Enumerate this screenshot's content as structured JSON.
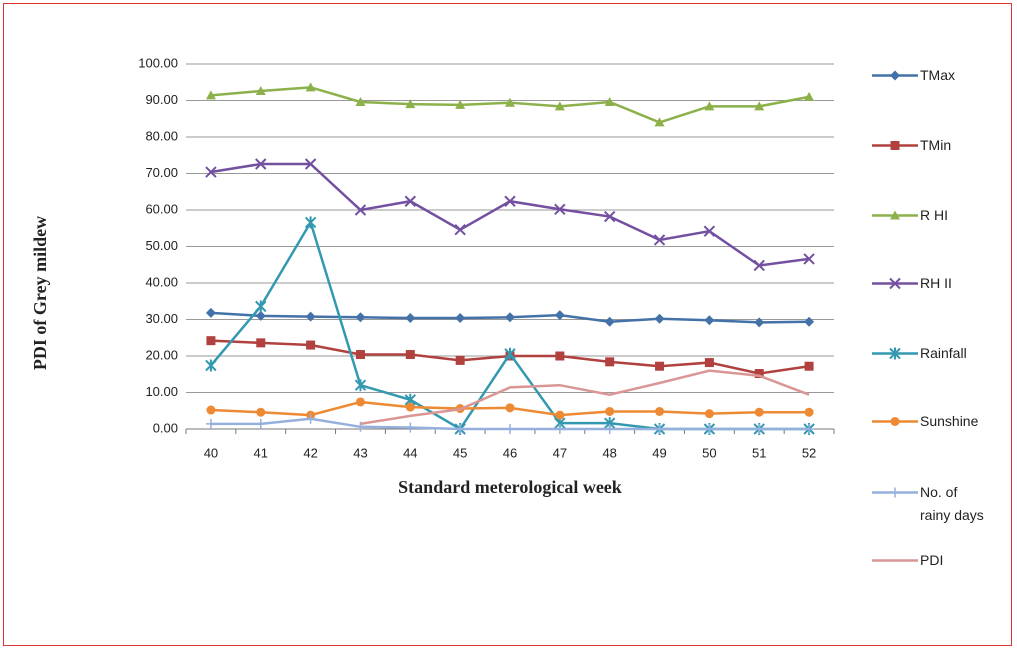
{
  "chart_data": {
    "type": "line",
    "y_label": "PDI of Grey mildew",
    "x_label": "Standard meterological week",
    "categories": [
      "40",
      "41",
      "42",
      "43",
      "44",
      "45",
      "46",
      "47",
      "48",
      "49",
      "50",
      "51",
      "52"
    ],
    "ylim": [
      0,
      100
    ],
    "yticks": [
      {
        "value": 0,
        "label": "0.00"
      },
      {
        "value": 10,
        "label": "10.00"
      },
      {
        "value": 20,
        "label": "20.00"
      },
      {
        "value": 30,
        "label": "30.00"
      },
      {
        "value": 40,
        "label": "40.00"
      },
      {
        "value": 50,
        "label": "50.00"
      },
      {
        "value": 60,
        "label": "60.00"
      },
      {
        "value": 70,
        "label": "70.00"
      },
      {
        "value": 80,
        "label": "80.00"
      },
      {
        "value": 90,
        "label": "90.00"
      },
      {
        "value": 100,
        "label": "100.00"
      }
    ],
    "grid": true,
    "legend": "right",
    "series": [
      {
        "name": "TMax",
        "color": "#4472a8",
        "marker": "diamond",
        "values": [
          31.8,
          31.0,
          30.8,
          30.6,
          30.4,
          30.4,
          30.6,
          31.2,
          29.4,
          30.2,
          29.8,
          29.2,
          29.4
        ]
      },
      {
        "name": "TMin",
        "color": "#b0413e",
        "marker": "square",
        "values": [
          24.2,
          23.6,
          23.0,
          20.4,
          20.4,
          18.8,
          20.0,
          20.0,
          18.4,
          17.2,
          18.2,
          15.2,
          17.2
        ]
      },
      {
        "name": "R HI",
        "color": "#8cb04a",
        "marker": "triangle",
        "values": [
          91.4,
          92.6,
          93.6,
          89.6,
          89.0,
          88.8,
          89.4,
          88.4,
          89.6,
          84.0,
          88.4,
          88.4,
          91.0
        ]
      },
      {
        "name": "RH II",
        "color": "#7350a0",
        "marker": "x",
        "values": [
          70.4,
          72.6,
          72.6,
          60.0,
          62.4,
          54.6,
          62.4,
          60.2,
          58.2,
          51.8,
          54.2,
          44.8,
          46.6
        ]
      },
      {
        "name": "Rainfall",
        "color": "#3399b0",
        "marker": "asterisk",
        "values": [
          17.4,
          33.6,
          56.6,
          12.0,
          8.0,
          0,
          20.6,
          1.6,
          1.6,
          0,
          0,
          0,
          0
        ]
      },
      {
        "name": "Sunshine",
        "color": "#ee8a33",
        "marker": "circle",
        "values": [
          5.2,
          4.6,
          3.8,
          7.4,
          6.0,
          5.6,
          5.8,
          3.8,
          4.8,
          4.8,
          4.2,
          4.6,
          4.6
        ]
      },
      {
        "name": "No. of rainy days",
        "color": "#95b0dc",
        "marker": "plus",
        "values": [
          1.4,
          1.4,
          2.8,
          0.6,
          0.4,
          0,
          0,
          0,
          0,
          0,
          0,
          0,
          0
        ]
      },
      {
        "name": "PDI",
        "color": "#d99694",
        "marker": "none",
        "values": [
          null,
          null,
          null,
          1.4,
          3.6,
          5.4,
          11.4,
          12.0,
          9.4,
          12.6,
          16.0,
          14.6,
          9.4
        ]
      }
    ]
  }
}
